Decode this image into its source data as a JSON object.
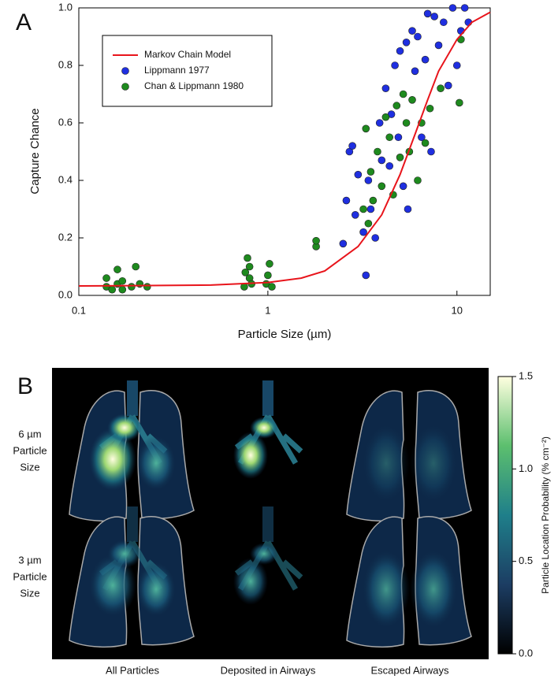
{
  "chart_data": {
    "type": "scatter",
    "panel_label": "A",
    "x_label": "Particle Size (µm)",
    "y_label": "Capture Chance",
    "xscale": "log",
    "xlim": [
      0.1,
      15
    ],
    "ylim": [
      0,
      1.0
    ],
    "xticks": [
      0.1,
      1,
      10
    ],
    "yticks": [
      {
        "value": 0,
        "label": "0.0"
      },
      {
        "value": 0.2,
        "label": "0.2"
      },
      {
        "value": 0.4,
        "label": "0.4"
      },
      {
        "value": 0.6,
        "label": "0.6"
      },
      {
        "value": 0.8,
        "label": "0.8"
      },
      {
        "value": 1.0,
        "label": "1.0"
      }
    ],
    "legend": "upper left",
    "series": [
      {
        "name": "Markov Chain Model",
        "type": "line",
        "color": "#e8141b",
        "x": [
          0.1,
          0.2,
          0.5,
          1,
          1.5,
          2,
          3,
          4,
          5,
          6,
          7,
          8,
          10,
          12,
          15
        ],
        "values": [
          0.033,
          0.034,
          0.036,
          0.045,
          0.06,
          0.085,
          0.17,
          0.28,
          0.42,
          0.56,
          0.68,
          0.78,
          0.89,
          0.95,
          0.985
        ]
      },
      {
        "name": "Lippmann 1977",
        "type": "scatter",
        "color": "#1f2fe0",
        "x": [
          2.5,
          2.6,
          2.7,
          2.8,
          2.9,
          3.0,
          3.2,
          3.3,
          3.4,
          3.5,
          3.7,
          3.9,
          4.0,
          4.2,
          4.4,
          4.5,
          4.7,
          4.9,
          5.0,
          5.2,
          5.4,
          5.5,
          5.8,
          6.0,
          6.2,
          6.5,
          6.8,
          7.0,
          7.3,
          7.6,
          8.0,
          8.5,
          9.0,
          9.5,
          10.0,
          10.5,
          11.0,
          11.5
        ],
        "values": [
          0.18,
          0.33,
          0.5,
          0.52,
          0.28,
          0.42,
          0.22,
          0.07,
          0.4,
          0.3,
          0.2,
          0.6,
          0.47,
          0.72,
          0.45,
          0.63,
          0.8,
          0.55,
          0.85,
          0.38,
          0.88,
          0.3,
          0.92,
          0.78,
          0.9,
          0.55,
          0.82,
          0.98,
          0.5,
          0.97,
          0.87,
          0.95,
          0.73,
          1.0,
          0.8,
          0.92,
          1.0,
          0.95
        ]
      },
      {
        "name": "Chan & Lippmann 1980",
        "type": "scatter",
        "color": "#1e8a1e",
        "x": [
          0.14,
          0.14,
          0.15,
          0.16,
          0.16,
          0.17,
          0.17,
          0.19,
          0.2,
          0.21,
          0.23,
          0.75,
          0.76,
          0.78,
          0.8,
          0.8,
          0.82,
          0.98,
          1.0,
          1.02,
          1.05,
          1.8,
          1.8,
          3.2,
          3.3,
          3.4,
          3.5,
          3.6,
          3.8,
          4.0,
          4.2,
          4.4,
          4.6,
          4.8,
          5.0,
          5.2,
          5.4,
          5.6,
          5.8,
          6.2,
          6.5,
          6.8,
          7.2,
          8.2,
          10.3,
          10.5
        ],
        "values": [
          0.03,
          0.06,
          0.02,
          0.04,
          0.09,
          0.02,
          0.05,
          0.03,
          0.1,
          0.04,
          0.03,
          0.03,
          0.08,
          0.13,
          0.06,
          0.1,
          0.04,
          0.04,
          0.07,
          0.11,
          0.03,
          0.17,
          0.19,
          0.3,
          0.58,
          0.25,
          0.43,
          0.33,
          0.5,
          0.38,
          0.62,
          0.55,
          0.35,
          0.66,
          0.48,
          0.7,
          0.6,
          0.5,
          0.68,
          0.4,
          0.6,
          0.53,
          0.65,
          0.72,
          0.67,
          0.89
        ]
      }
    ]
  },
  "panel_b": {
    "panel_label": "B",
    "rows": [
      [
        "6 µm",
        "Particle",
        "Size"
      ],
      [
        "3 µm",
        "Particle",
        "Size"
      ]
    ],
    "columns": [
      "All Particles",
      "Deposited in Airways",
      "Escaped Airways"
    ],
    "colorbar": {
      "label": "Particle Location Probability (% cm⁻²)",
      "lim": [
        0,
        1.5
      ],
      "ticks": [
        {
          "value": 0,
          "label": "0.0"
        },
        {
          "value": 0.5,
          "label": "0.5"
        },
        {
          "value": 1.0,
          "label": "1.0"
        },
        {
          "value": 1.5,
          "label": "1.5"
        }
      ]
    }
  }
}
